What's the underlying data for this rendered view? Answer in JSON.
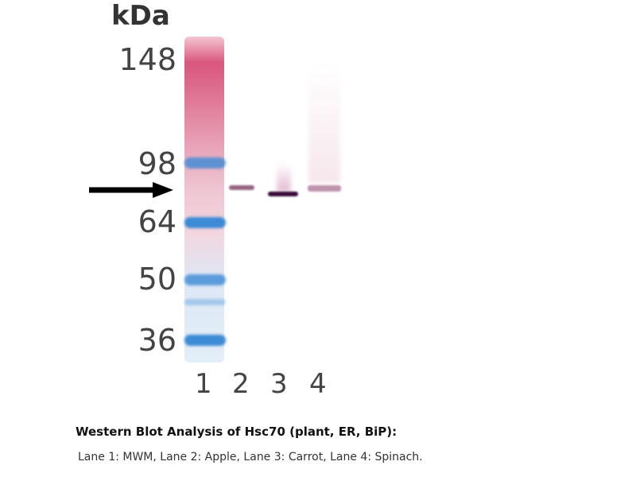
{
  "unit_label": "kDa",
  "markers": [
    "148",
    "98",
    "64",
    "50",
    "36"
  ],
  "lanes": [
    "1",
    "2",
    "3",
    "4"
  ],
  "caption": {
    "title": "Western Blot Analysis of Hsc70 (plant, ER, BiP):",
    "description": "Lane 1: MWM, Lane 2: Apple, Lane 3: Carrot, Lane 4: Spinach."
  },
  "colors": {
    "marker_blue": "#3d8ad6",
    "ladder_pink": "#d9567f",
    "band_dark": "#3a0d3a"
  },
  "icons": {
    "arrow": "arrow-right-icon"
  }
}
